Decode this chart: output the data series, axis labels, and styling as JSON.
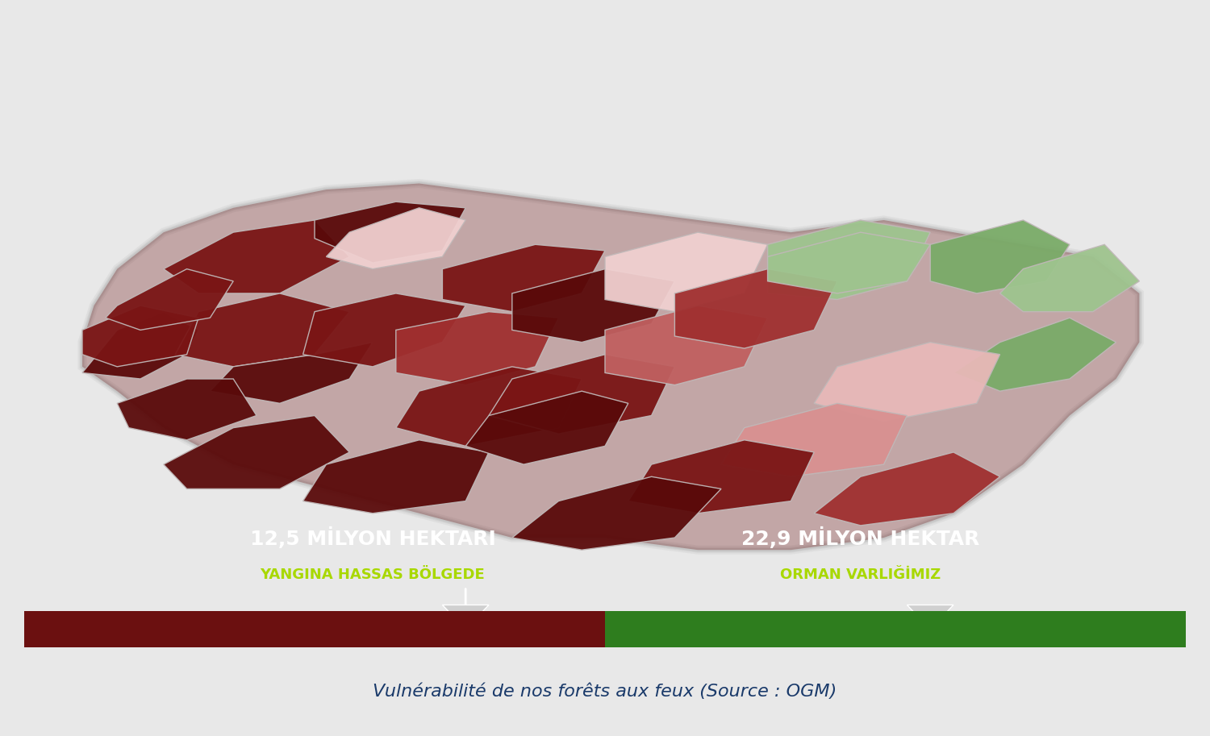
{
  "bg_color": "#2c3e50",
  "map_bg": "#3a4a5c",
  "bar_left_color": "#6b1010",
  "bar_right_color": "#2e7d1e",
  "text_color_white": "#ffffff",
  "text_color_green": "#a8d800",
  "caption_color": "#2c3e50",
  "stat1_value": "12,5 MİLYON HEKTARI",
  "stat1_label": "YANGINA HASSAS BÖLGEDE",
  "stat2_value": "22,9 MİLYON HEKTAR",
  "stat2_label": "ORMAN VARLIĞİMIZ",
  "caption": "Vulnérabilité de nos forêts aux feux",
  "caption_source": " (Source : OGM)",
  "outline_color": "#c0b8b8",
  "colors": {
    "very_dark_red": "#5a0a0a",
    "dark_red": "#7a1515",
    "medium_red": "#a03030",
    "light_red": "#c06060",
    "very_light_red": "#d99090",
    "pink": "#e8b8b8",
    "light_pink": "#f0d0d0",
    "green": "#7aab68",
    "light_green": "#9ec48e"
  }
}
